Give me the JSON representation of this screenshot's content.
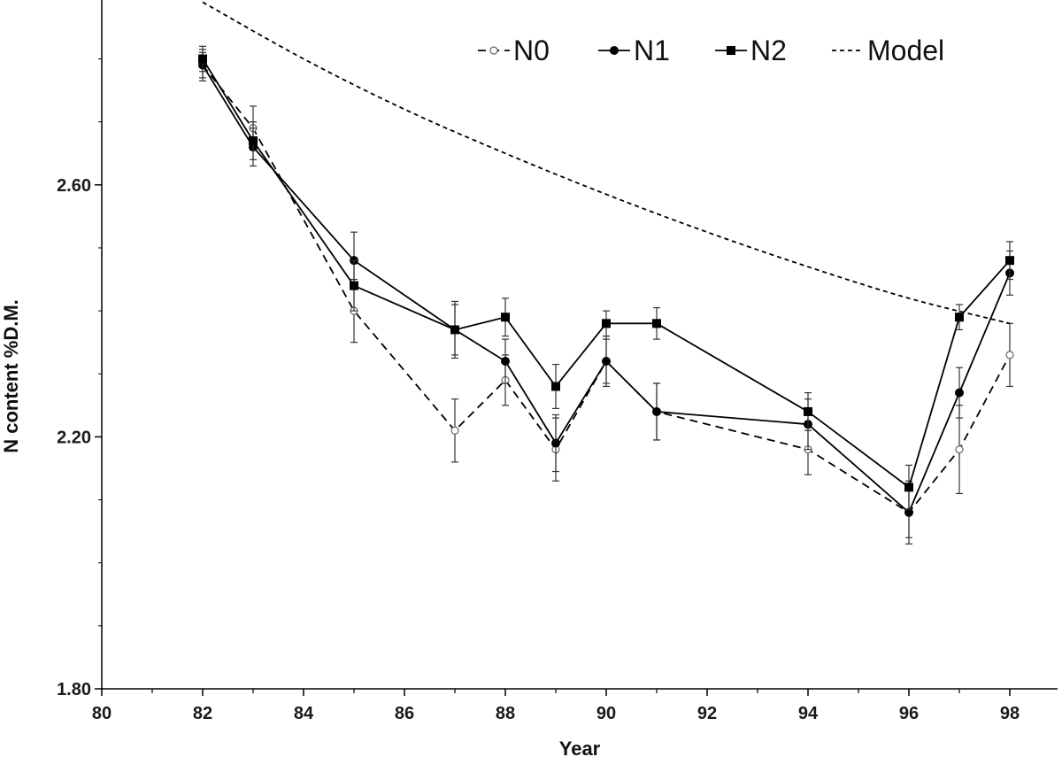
{
  "chart_data": {
    "type": "line",
    "title": "",
    "xlabel": "Year",
    "ylabel": "N content %D.M.",
    "xlim": [
      80,
      99
    ],
    "ylim": [
      1.8,
      2.9
    ],
    "x_ticks": [
      "80",
      "82",
      "84",
      "86",
      "88",
      "90",
      "92",
      "94",
      "96",
      "98"
    ],
    "y_ticks": [
      "1.80",
      "2.20",
      "2.60"
    ],
    "legend_position": "top-right",
    "series": [
      {
        "name": "N0",
        "style": "dashed",
        "marker": "open-circle",
        "color": "#000000",
        "x": [
          82,
          83,
          85,
          87,
          88,
          89,
          90,
          91,
          94,
          96,
          97,
          98
        ],
        "values": [
          2.79,
          2.69,
          2.4,
          2.21,
          2.29,
          2.18,
          2.32,
          2.24,
          2.18,
          2.08,
          2.18,
          2.33
        ],
        "errors": [
          0.02,
          0.035,
          0.05,
          0.05,
          0.04,
          0.05,
          0.04,
          0.045,
          0.04,
          0.05,
          0.07,
          0.05
        ]
      },
      {
        "name": "N1",
        "style": "solid",
        "marker": "filled-circle",
        "color": "#000000",
        "x": [
          82,
          83,
          85,
          87,
          88,
          89,
          90,
          91,
          94,
          96,
          97,
          98
        ],
        "values": [
          2.79,
          2.66,
          2.48,
          2.37,
          2.32,
          2.19,
          2.32,
          2.24,
          2.22,
          2.08,
          2.27,
          2.46
        ],
        "errors": [
          0.025,
          0.03,
          0.045,
          0.045,
          0.035,
          0.045,
          0.035,
          0.045,
          0.04,
          0.04,
          0.04,
          0.035
        ]
      },
      {
        "name": "N2",
        "style": "solid",
        "marker": "filled-square",
        "color": "#000000",
        "x": [
          82,
          83,
          85,
          87,
          88,
          89,
          90,
          91,
          94,
          96,
          97,
          98
        ],
        "values": [
          2.8,
          2.67,
          2.44,
          2.37,
          2.39,
          2.28,
          2.38,
          2.38,
          2.24,
          2.12,
          2.39,
          2.48
        ],
        "errors": [
          0.02,
          0.03,
          0.04,
          0.04,
          0.03,
          0.035,
          0.02,
          0.025,
          0.03,
          0.035,
          0.02,
          0.03
        ]
      },
      {
        "name": "Model",
        "style": "dotted",
        "marker": "none",
        "color": "#000000",
        "x": [
          82,
          84,
          86,
          88,
          90,
          92,
          94,
          96,
          98
        ],
        "values": [
          2.89,
          2.8,
          2.72,
          2.65,
          2.585,
          2.525,
          2.47,
          2.42,
          2.38
        ]
      }
    ]
  }
}
